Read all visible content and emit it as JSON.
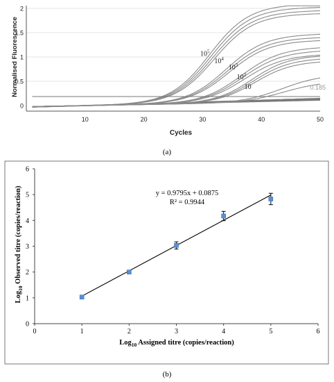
{
  "figure": {
    "label_a": "(a)",
    "label_b": "(b)"
  },
  "chart_data": [
    {
      "type": "line",
      "xlabel": "Cycles",
      "ylabel": "Normalised Fluorescence",
      "xlim": [
        0,
        50
      ],
      "ylim": [
        0,
        2
      ],
      "x_ticks": [
        "10",
        "20",
        "30",
        "40",
        "50"
      ],
      "y_ticks": [
        "0",
        "0.5",
        "1",
        "1.5",
        "2"
      ],
      "grid": "horizontal",
      "threshold": {
        "value": 0.185,
        "label": "0.185"
      },
      "dilution_labels": [
        {
          "base": "10",
          "exp": "5",
          "x": 29.6,
          "y": 1.02
        },
        {
          "base": "10",
          "exp": "4",
          "x": 32.0,
          "y": 0.87
        },
        {
          "base": "10",
          "exp": "3",
          "x": 34.4,
          "y": 0.74
        },
        {
          "base": "10",
          "exp": "2",
          "x": 35.8,
          "y": 0.54
        },
        {
          "base": "10",
          "exp": "",
          "x": 37.1,
          "y": 0.34
        }
      ],
      "curve_groups": [
        {
          "midpoint": 31.2,
          "slope": 0.3,
          "plateaus": [
            2.02,
            1.95,
            1.88,
            1.82
          ]
        },
        {
          "midpoint": 34.0,
          "slope": 0.3,
          "plateaus": [
            1.4,
            1.33,
            1.27
          ]
        },
        {
          "midpoint": 36.6,
          "slope": 0.3,
          "plateaus": [
            1.13,
            1.06,
            0.98
          ]
        },
        {
          "midpoint": 38.4,
          "slope": 0.32,
          "plateaus": [
            0.96,
            0.9,
            0.84
          ]
        },
        {
          "midpoint": 43.5,
          "slope": 0.3,
          "plateaus": [
            0.56,
            0.42
          ]
        }
      ],
      "baseline": {
        "start": -0.03,
        "end": 0.13,
        "x_from": 1,
        "x_to": 50
      }
    },
    {
      "type": "scatter",
      "xlabel": "Log10 Assigned titre (copies/reaction)",
      "ylabel": "Log10 Observed titre (copies/reaction)",
      "xlabel_sub": "10",
      "xlabel_rest": " Assigned titre (copies/reaction)",
      "ylabel_sub": "10",
      "ylabel_rest": " Observed titre (copies/reaction)",
      "xlim": [
        0,
        6
      ],
      "ylim": [
        0,
        6
      ],
      "x_ticks": [
        "0",
        "1",
        "2",
        "3",
        "4",
        "5",
        "6"
      ],
      "y_ticks": [
        "0",
        "1",
        "2",
        "3",
        "4",
        "5",
        "6"
      ],
      "points": [
        {
          "x": 1,
          "y": 1.03,
          "err": 0.03
        },
        {
          "x": 2,
          "y": 2.0,
          "err": 0.07
        },
        {
          "x": 3,
          "y": 3.03,
          "err": 0.14
        },
        {
          "x": 4,
          "y": 4.17,
          "err": 0.18
        },
        {
          "x": 5,
          "y": 4.83,
          "err": 0.22
        }
      ],
      "trendline": {
        "slope": 0.9795,
        "intercept": 0.0875,
        "x_from": 1,
        "x_to": 5
      },
      "equation": "y = 0.9795x + 0.0875",
      "r_squared": "R² = 0.9944",
      "marker_color": "#5b8fd6",
      "grid": false
    }
  ]
}
